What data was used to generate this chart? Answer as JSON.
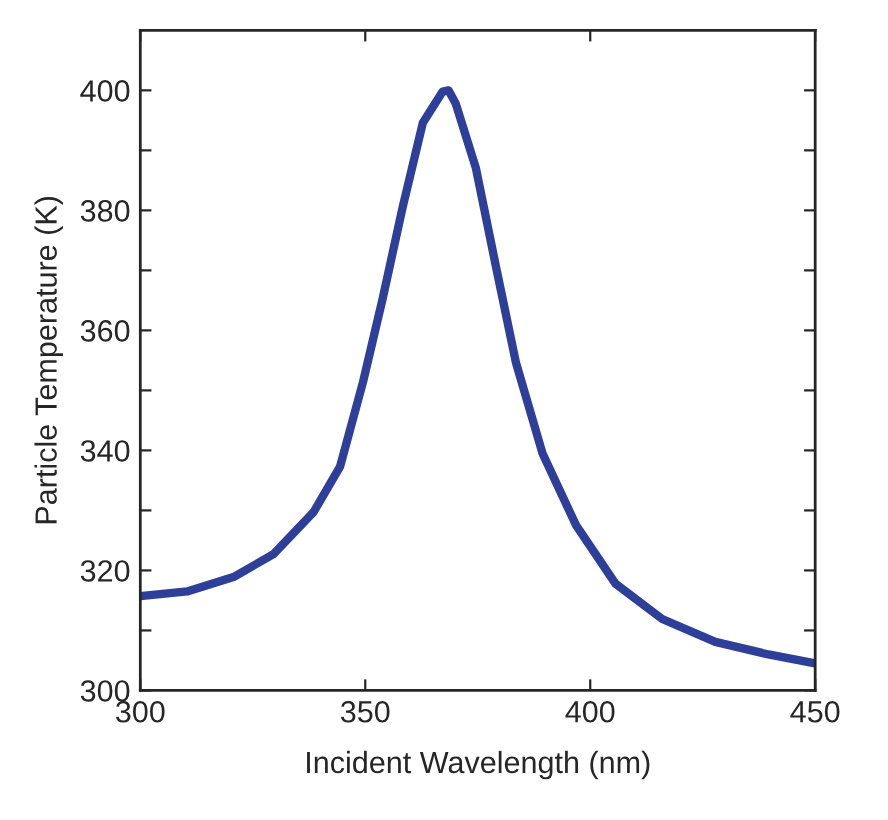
{
  "chart_data": {
    "type": "line",
    "xlabel": "Incident Wavelength (nm)",
    "ylabel": "Particle Temperature (K)",
    "xlim": [
      300,
      450
    ],
    "xticks": [
      300,
      350,
      400,
      450
    ],
    "ylim": [
      300,
      410
    ],
    "yticks": [
      300,
      {
        "value": 310,
        "label": null
      },
      320,
      {
        "value": 330,
        "label": null
      },
      340,
      {
        "value": 350,
        "label": null
      },
      360,
      {
        "value": 370,
        "label": null
      },
      380,
      {
        "value": 390,
        "label": null
      },
      400
    ],
    "grid": false,
    "legend": false,
    "series": [
      {
        "color": "#2e3f99",
        "x": [
          300,
          310.4,
          320.7,
          329.6,
          338.5,
          344.4,
          349.5,
          353.9,
          358.3,
          362.8,
          367.2,
          368.5,
          370.1,
          374.6,
          379.0,
          383.5,
          389.4,
          396.8,
          405.6,
          416.0,
          427.8,
          439.6,
          450
        ],
        "values": [
          315.7,
          316.5,
          318.9,
          322.7,
          329.7,
          337.3,
          351.4,
          365.4,
          380.5,
          394.6,
          399.8,
          400,
          397.8,
          387.0,
          370.8,
          354.6,
          339.5,
          327.6,
          317.8,
          311.9,
          308.1,
          306.0,
          304.5
        ]
      }
    ]
  }
}
